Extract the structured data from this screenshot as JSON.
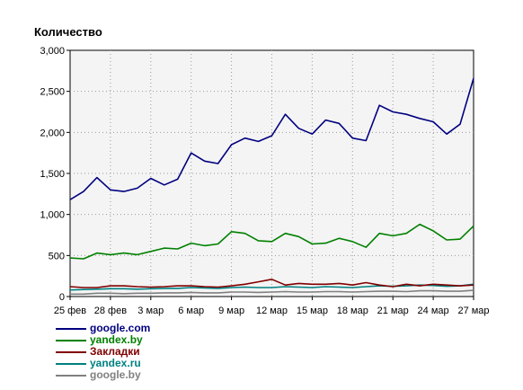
{
  "chart_data": {
    "type": "line",
    "ylabel": "Количество",
    "ylim": [
      0,
      3000
    ],
    "yticks": [
      0,
      500,
      1000,
      1500,
      2000,
      2500,
      3000
    ],
    "ytick_labels": [
      "0",
      "500",
      "1,000",
      "1,500",
      "2,000",
      "2,500",
      "3,000"
    ],
    "x_tick_labels": [
      "25 фев",
      "28 фев",
      "3 мар",
      "6 мар",
      "9 мар",
      "12 мар",
      "15 мар",
      "18 мар",
      "21 мар",
      "24 мар",
      "27 мар"
    ],
    "x_tick_index": [
      0,
      3,
      6,
      9,
      12,
      15,
      18,
      21,
      24,
      27,
      30
    ],
    "grid": true,
    "legend_position": "bottom-left",
    "series": [
      {
        "name": "google.com",
        "color": "#000080",
        "values": [
          1180,
          1280,
          1450,
          1300,
          1280,
          1320,
          1440,
          1360,
          1430,
          1750,
          1650,
          1620,
          1850,
          1930,
          1890,
          1960,
          2220,
          2050,
          1980,
          2150,
          2110,
          1930,
          1900,
          2330,
          2250,
          2220,
          2170,
          2130,
          1980,
          2100,
          2660
        ]
      },
      {
        "name": "yandex.by",
        "color": "#008000",
        "values": [
          470,
          460,
          530,
          510,
          530,
          510,
          550,
          590,
          580,
          650,
          620,
          640,
          790,
          770,
          680,
          670,
          770,
          730,
          640,
          650,
          710,
          670,
          600,
          770,
          740,
          770,
          880,
          800,
          690,
          700,
          860
        ]
      },
      {
        "name": "Закладки",
        "color": "#800000",
        "values": [
          120,
          110,
          110,
          130,
          130,
          120,
          115,
          120,
          130,
          130,
          120,
          115,
          130,
          150,
          180,
          210,
          140,
          160,
          150,
          150,
          160,
          140,
          170,
          140,
          120,
          150,
          130,
          150,
          140,
          130,
          140
        ]
      },
      {
        "name": "yandex.ru",
        "color": "#008080",
        "values": [
          80,
          85,
          90,
          95,
          95,
          90,
          95,
          100,
          100,
          110,
          105,
          100,
          110,
          115,
          110,
          110,
          120,
          115,
          110,
          120,
          115,
          110,
          120,
          130,
          125,
          130,
          140,
          135,
          125,
          130,
          150
        ]
      },
      {
        "name": "google.by",
        "color": "#808080",
        "values": [
          30,
          30,
          40,
          40,
          35,
          40,
          40,
          45,
          45,
          50,
          45,
          45,
          55,
          55,
          50,
          55,
          60,
          55,
          55,
          60,
          60,
          55,
          60,
          65,
          65,
          60,
          70,
          70,
          65,
          65,
          75
        ]
      }
    ]
  }
}
